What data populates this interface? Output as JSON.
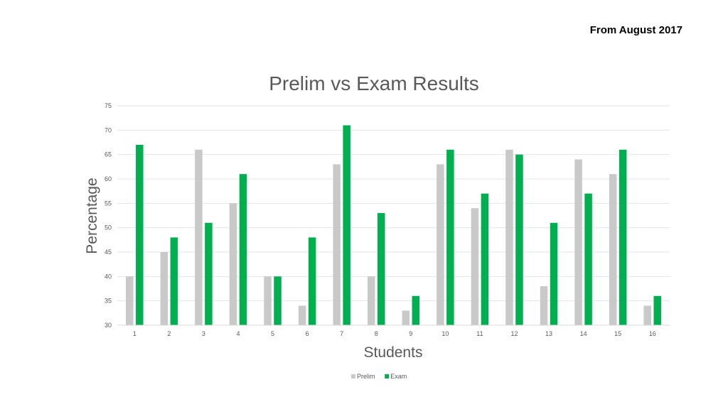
{
  "header_note": "From August 2017",
  "chart_data": {
    "type": "bar",
    "title": "Prelim vs Exam Results",
    "xlabel": "Students",
    "ylabel": "Percentage",
    "ylim": [
      30,
      75
    ],
    "yticks": [
      30,
      35,
      40,
      45,
      50,
      55,
      60,
      65,
      70,
      75
    ],
    "categories": [
      "1",
      "2",
      "3",
      "4",
      "5",
      "6",
      "7",
      "8",
      "9",
      "10",
      "11",
      "12",
      "13",
      "14",
      "15",
      "16"
    ],
    "series": [
      {
        "name": "Prelim",
        "color": "#c9c9c9",
        "values": [
          40,
          45,
          66,
          55,
          40,
          34,
          63,
          40,
          33,
          63,
          54,
          66,
          38,
          64,
          61,
          34
        ]
      },
      {
        "name": "Exam",
        "color": "#00b050",
        "values": [
          67,
          48,
          51,
          61,
          40,
          48,
          71,
          53,
          36,
          66,
          57,
          65,
          51,
          57,
          66,
          36
        ]
      }
    ],
    "grid": true,
    "legend_position": "bottom"
  }
}
